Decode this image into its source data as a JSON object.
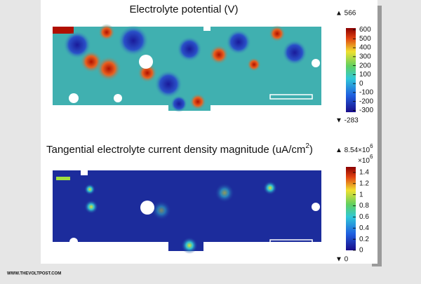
{
  "panels": [
    {
      "title": {
        "text": "Electrolyte potential (V)"
      },
      "max_label": {
        "text": "▲ 566"
      },
      "min_label": {
        "text": "▼ -283"
      },
      "colorbar": {
        "limits": [
          -320,
          620
        ],
        "ticks": [
          600,
          500,
          400,
          300,
          200,
          100,
          0,
          -100,
          -200,
          -300
        ]
      }
    },
    {
      "title": {
        "text": "Tangential electrolyte current density magnitude (uA/cm",
        "superscript": "2",
        "suffix": ")"
      },
      "max_label": {
        "text": "▲ 8.54×10",
        "superscript": "6"
      },
      "multiplier": {
        "text": "×10",
        "superscript": "6"
      },
      "min_label": {
        "text": "▼ 0"
      },
      "colorbar": {
        "limits": [
          0,
          1.5
        ],
        "ticks": [
          1.4,
          1.2,
          1,
          0.8,
          0.6,
          0.4,
          0.2,
          0
        ]
      }
    }
  ],
  "watermark": "WWW.THEVOLTPOST.COM"
}
